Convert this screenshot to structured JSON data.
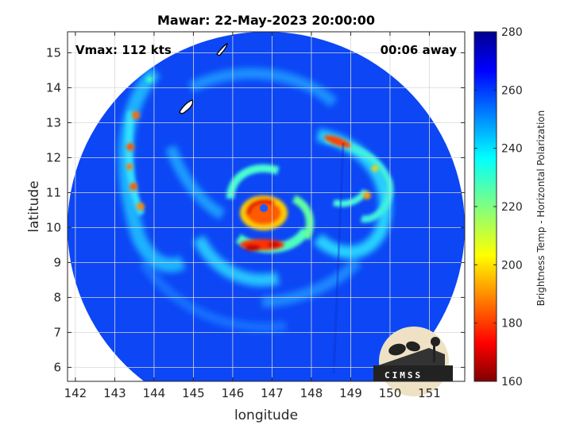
{
  "title": "Mawar: 22-May-2023 20:00:00",
  "annotations": {
    "vmax": "Vmax: 112 kts",
    "time_away": "00:06 away"
  },
  "logo_text": "CIMSS",
  "chart_data": {
    "type": "heatmap",
    "title": "Mawar: 22-May-2023 20:00:00",
    "xlabel": "longitude",
    "ylabel": "latitude",
    "xlim": [
      141.8,
      151.9
    ],
    "ylim": [
      5.6,
      15.6
    ],
    "xticks": [
      142,
      143,
      144,
      145,
      146,
      147,
      148,
      149,
      150,
      151
    ],
    "yticks": [
      6,
      7,
      8,
      9,
      10,
      11,
      12,
      13,
      14,
      15
    ],
    "grid": true,
    "colorbar": {
      "label": "Brightness Temp - Horizontal Polarization",
      "range": [
        160,
        280
      ],
      "ticks": [
        160,
        180,
        200,
        220,
        240,
        260,
        280
      ],
      "colormap": "jet"
    },
    "storm_center": {
      "lon": 146.7,
      "lat": 10.55
    },
    "swath_center": {
      "lon": 146.85,
      "lat": 10.4
    },
    "eyewall_min_temp_approx": 180,
    "background_temp_approx": 262
  },
  "colors": {
    "jet_stops": [
      "#00008f",
      "#0000ff",
      "#0080ff",
      "#00ffff",
      "#80ff80",
      "#ffff00",
      "#ff8000",
      "#ff0000",
      "#800000"
    ]
  }
}
